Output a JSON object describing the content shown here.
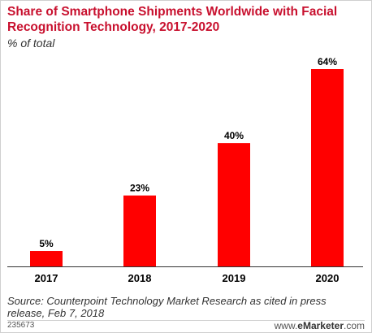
{
  "chart_data": {
    "type": "bar",
    "title": "Share of Smartphone Shipments Worldwide with Facial Recognition Technology, 2017-2020",
    "subtitle": "% of total",
    "categories": [
      "2017",
      "2018",
      "2019",
      "2020"
    ],
    "values": [
      5,
      23,
      40,
      64
    ],
    "value_labels": [
      "5%",
      "23%",
      "40%",
      "64%"
    ],
    "ylim": [
      0,
      64
    ],
    "grid": false,
    "bar_color": "#ff0000"
  },
  "footer": {
    "source": "Source: Counterpoint Technology Market Research as cited in press release, Feb 7, 2018",
    "chart_id": "235673",
    "brand_prefix": "www.",
    "brand_name": "eMarketer",
    "brand_suffix": ".com"
  }
}
